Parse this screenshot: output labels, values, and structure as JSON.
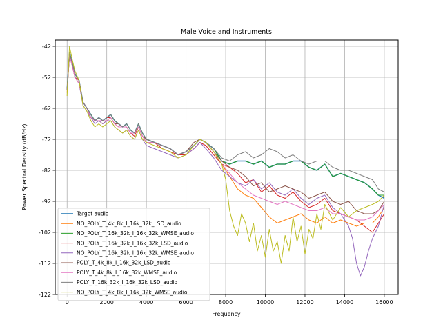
{
  "chart_data": {
    "type": "line",
    "title": "Male Voice and Instruments",
    "xlabel": "Frequency",
    "ylabel": "Power Spectral Density (dB/Hz)",
    "xlim": [
      -600,
      16700
    ],
    "ylim": [
      -122,
      -40
    ],
    "xticks": [
      0,
      2000,
      4000,
      6000,
      8000,
      10000,
      12000,
      14000,
      16000
    ],
    "yticks": [
      -42,
      -52,
      -62,
      -72,
      -82,
      -92,
      -102,
      -112,
      -122
    ],
    "grid": true,
    "legend_position": "lower-left",
    "series": [
      {
        "name": "Target audio",
        "color": "#1f77b4",
        "x": [
          0,
          120,
          250,
          400,
          600,
          800,
          1000,
          1200,
          1400,
          1600,
          1800,
          2000,
          2200,
          2400,
          2600,
          2800,
          3000,
          3200,
          3400,
          3600,
          3800,
          4000,
          4400,
          4800,
          5200,
          5600,
          6000,
          6400,
          6700,
          7000,
          7400,
          7800,
          8200,
          8600,
          9000,
          9400,
          9800,
          10200,
          10600,
          11000,
          11400,
          11800,
          12200,
          12600,
          13000,
          13400,
          13800,
          14200,
          14600,
          15000,
          15400,
          15700,
          16000
        ],
        "y": [
          -56,
          -44,
          -47,
          -51,
          -53,
          -60,
          -62,
          -64,
          -66,
          -65,
          -66,
          -65,
          -64,
          -66,
          -67,
          -68,
          -67,
          -69,
          -70,
          -67,
          -70,
          -72,
          -73,
          -74,
          -75,
          -77,
          -76,
          -74,
          -72,
          -73,
          -75,
          -79,
          -80,
          -79,
          -79,
          -80,
          -79,
          -81,
          -80,
          -80,
          -79,
          -79,
          -81,
          -82,
          -80,
          -84,
          -83,
          -84,
          -85,
          -86,
          -88,
          -90,
          -91
        ]
      },
      {
        "name": "NO_POLY_T_4k_8k_I_16k_32k_LSD_audio",
        "color": "#ff7f0e",
        "x": [
          0,
          120,
          250,
          400,
          600,
          800,
          1000,
          1200,
          1400,
          1600,
          1800,
          2000,
          2200,
          2400,
          2600,
          2800,
          3000,
          3200,
          3400,
          3600,
          3800,
          4000,
          4400,
          4800,
          5200,
          5600,
          6000,
          6400,
          6700,
          7000,
          7400,
          7800,
          8200,
          8600,
          9000,
          9400,
          9800,
          10200,
          10600,
          11000,
          11400,
          11800,
          12200,
          12600,
          13000,
          13400,
          13800,
          14200,
          14600,
          15000,
          15400,
          15700,
          16000
        ],
        "y": [
          -57,
          -45,
          -48,
          -52,
          -54,
          -60,
          -62,
          -65,
          -66,
          -66,
          -67,
          -66,
          -65,
          -67,
          -68,
          -68,
          -68,
          -70,
          -70,
          -68,
          -71,
          -72,
          -73,
          -74,
          -75,
          -77,
          -76,
          -74,
          -72,
          -73,
          -76,
          -80,
          -84,
          -88,
          -90,
          -91,
          -94,
          -97,
          -99,
          -98,
          -97,
          -96,
          -98,
          -99,
          -97,
          -99,
          -98,
          -99,
          -100,
          -99,
          -99,
          -97,
          -94
        ]
      },
      {
        "name": "NO_POLY_T_16k_32k_I_16k_32k_WMSE_audio",
        "color": "#2ca02c",
        "x": [
          0,
          120,
          250,
          400,
          600,
          800,
          1000,
          1200,
          1400,
          1600,
          1800,
          2000,
          2200,
          2400,
          2600,
          2800,
          3000,
          3200,
          3400,
          3600,
          3800,
          4000,
          4400,
          4800,
          5200,
          5600,
          6000,
          6400,
          6700,
          7000,
          7400,
          7800,
          8200,
          8600,
          9000,
          9400,
          9800,
          10200,
          10600,
          11000,
          11400,
          11800,
          12200,
          12600,
          13000,
          13400,
          13800,
          14200,
          14600,
          15000,
          15400,
          15700,
          16000
        ],
        "y": [
          -56,
          -44,
          -47,
          -51,
          -53,
          -60,
          -62,
          -64,
          -66,
          -65,
          -66,
          -65,
          -64,
          -66,
          -67,
          -68,
          -67,
          -69,
          -70,
          -67,
          -70,
          -72,
          -73,
          -74,
          -75,
          -77,
          -76,
          -74,
          -72,
          -73,
          -75,
          -79,
          -80,
          -79,
          -79,
          -80,
          -79,
          -81,
          -80,
          -80,
          -79,
          -79,
          -81,
          -82,
          -80,
          -84,
          -83,
          -84,
          -85,
          -86,
          -88,
          -90,
          -90
        ]
      },
      {
        "name": "NO_POLY_T_16k_32k_I_16k_32k_LSD_audio",
        "color": "#d62728",
        "x": [
          0,
          120,
          250,
          400,
          600,
          800,
          1000,
          1200,
          1400,
          1600,
          1800,
          2000,
          2200,
          2400,
          2600,
          2800,
          3000,
          3200,
          3400,
          3600,
          3800,
          4000,
          4400,
          4800,
          5200,
          5600,
          6000,
          6400,
          6700,
          7000,
          7400,
          7800,
          8200,
          8600,
          9000,
          9400,
          9800,
          10200,
          10600,
          11000,
          11400,
          11800,
          12200,
          12600,
          13000,
          13400,
          13800,
          14200,
          14600,
          15000,
          15400,
          15700,
          16000
        ],
        "y": [
          -56,
          -45,
          -48,
          -52,
          -53,
          -60,
          -62,
          -65,
          -66,
          -66,
          -66,
          -65,
          -65,
          -67,
          -67,
          -68,
          -68,
          -70,
          -71,
          -68,
          -71,
          -73,
          -73,
          -75,
          -76,
          -77,
          -77,
          -75,
          -73,
          -74,
          -77,
          -80,
          -81,
          -83,
          -86,
          -85,
          -89,
          -87,
          -90,
          -91,
          -89,
          -92,
          -94,
          -93,
          -91,
          -95,
          -96,
          -97,
          -98,
          -100,
          -102,
          -99,
          -96
        ]
      },
      {
        "name": "NO_POLY_T_16k_32k_I_16k_32k_WMSE_audio",
        "color": "#9467bd",
        "x": [
          0,
          120,
          250,
          400,
          600,
          800,
          1000,
          1200,
          1400,
          1600,
          1800,
          2000,
          2200,
          2400,
          2600,
          2800,
          3000,
          3200,
          3400,
          3600,
          3800,
          4000,
          4400,
          4800,
          5200,
          5600,
          6000,
          6400,
          6700,
          7000,
          7400,
          7800,
          8200,
          8600,
          9000,
          9400,
          9800,
          10200,
          10600,
          11000,
          11400,
          11800,
          12200,
          12600,
          13000,
          13400,
          13800,
          14200,
          14400,
          14600,
          14800,
          15000,
          15200,
          15400,
          15700,
          16000
        ],
        "y": [
          -56,
          -45,
          -48,
          -52,
          -54,
          -61,
          -63,
          -65,
          -67,
          -66,
          -67,
          -66,
          -66,
          -68,
          -69,
          -70,
          -69,
          -71,
          -72,
          -69,
          -72,
          -74,
          -75,
          -76,
          -77,
          -78,
          -77,
          -75,
          -73,
          -75,
          -78,
          -82,
          -84,
          -86,
          -87,
          -85,
          -88,
          -86,
          -89,
          -90,
          -88,
          -91,
          -93,
          -91,
          -90,
          -94,
          -96,
          -100,
          -104,
          -112,
          -116,
          -113,
          -108,
          -104,
          -100,
          -93
        ]
      },
      {
        "name": "POLY_T_4k_8k_I_16k_32k_LSD_audio",
        "color": "#8c564b",
        "x": [
          0,
          120,
          250,
          400,
          600,
          800,
          1000,
          1200,
          1400,
          1600,
          1800,
          2000,
          2200,
          2400,
          2600,
          2800,
          3000,
          3200,
          3400,
          3600,
          3800,
          4000,
          4400,
          4800,
          5200,
          5600,
          6000,
          6400,
          6700,
          7000,
          7400,
          7800,
          8200,
          8600,
          9000,
          9400,
          9800,
          10200,
          10600,
          11000,
          11400,
          11800,
          12200,
          12600,
          13000,
          13400,
          13800,
          14200,
          14600,
          15000,
          15400,
          15700,
          16000
        ],
        "y": [
          -56,
          -45,
          -48,
          -52,
          -54,
          -60,
          -62,
          -65,
          -66,
          -65,
          -66,
          -66,
          -65,
          -67,
          -67,
          -68,
          -68,
          -70,
          -70,
          -68,
          -71,
          -72,
          -73,
          -74,
          -75,
          -77,
          -76,
          -73,
          -72,
          -73,
          -76,
          -79,
          -81,
          -82,
          -84,
          -87,
          -86,
          -89,
          -88,
          -87,
          -88,
          -89,
          -91,
          -90,
          -89,
          -92,
          -93,
          -92,
          -95,
          -96,
          -96,
          -95,
          -92
        ]
      },
      {
        "name": "POLY_T_4k_8k_I_16k_32k_WMSE_audio",
        "color": "#e377c2",
        "x": [
          0,
          120,
          250,
          400,
          600,
          800,
          1000,
          1200,
          1400,
          1600,
          1800,
          2000,
          2200,
          2400,
          2600,
          2800,
          3000,
          3200,
          3400,
          3600,
          3800,
          4000,
          4400,
          4800,
          5200,
          5600,
          6000,
          6400,
          6700,
          7000,
          7400,
          7800,
          8200,
          8600,
          9000,
          9400,
          9800,
          10200,
          10600,
          11000,
          11400,
          11800,
          12200,
          12600,
          13000,
          13400,
          13800,
          14200,
          14600,
          15000,
          15400,
          15700,
          16000
        ],
        "y": [
          -56,
          -45,
          -48,
          -52,
          -54,
          -60,
          -62,
          -65,
          -66,
          -66,
          -66,
          -66,
          -65,
          -67,
          -68,
          -68,
          -68,
          -70,
          -70,
          -68,
          -71,
          -73,
          -73,
          -74,
          -75,
          -77,
          -76,
          -74,
          -72,
          -73,
          -76,
          -80,
          -83,
          -86,
          -88,
          -90,
          -91,
          -92,
          -93,
          -92,
          -93,
          -94,
          -95,
          -95,
          -94,
          -96,
          -96,
          -97,
          -98,
          -98,
          -97,
          -95,
          -93
        ]
      },
      {
        "name": "POLY_T_16k_32k_I_16k_32k_LSD_audio",
        "color": "#7f7f7f",
        "x": [
          0,
          120,
          250,
          400,
          600,
          800,
          1000,
          1200,
          1400,
          1600,
          1800,
          2000,
          2200,
          2400,
          2600,
          2800,
          3000,
          3200,
          3400,
          3600,
          3800,
          4000,
          4400,
          4800,
          5200,
          5600,
          6000,
          6400,
          6700,
          7000,
          7400,
          7800,
          8200,
          8600,
          9000,
          9400,
          9800,
          10200,
          10600,
          11000,
          11400,
          11800,
          12200,
          12600,
          13000,
          13400,
          13800,
          14200,
          14600,
          15000,
          15400,
          15700,
          16000
        ],
        "y": [
          -56,
          -44,
          -47,
          -51,
          -53,
          -60,
          -62,
          -64,
          -66,
          -65,
          -66,
          -65,
          -64,
          -66,
          -67,
          -68,
          -67,
          -69,
          -70,
          -67,
          -70,
          -72,
          -73,
          -74,
          -75,
          -77,
          -76,
          -74,
          -72,
          -73,
          -75,
          -78,
          -79,
          -77,
          -76,
          -78,
          -77,
          -75,
          -76,
          -78,
          -77,
          -79,
          -80,
          -79,
          -79,
          -81,
          -82,
          -82,
          -83,
          -84,
          -85,
          -88,
          -89
        ]
      },
      {
        "name": "NO_POLY_T_4k_8k_I_16k_32k_WMSE_audio",
        "color": "#bcbd22",
        "x": [
          0,
          120,
          250,
          400,
          600,
          800,
          1000,
          1200,
          1400,
          1600,
          1800,
          2000,
          2200,
          2400,
          2600,
          2800,
          3000,
          3200,
          3400,
          3600,
          3800,
          4000,
          4400,
          4800,
          5200,
          5600,
          6000,
          6400,
          6700,
          7000,
          7400,
          7800,
          8000,
          8200,
          8400,
          8600,
          8800,
          9000,
          9200,
          9400,
          9600,
          9800,
          10000,
          10200,
          10400,
          10600,
          10800,
          11000,
          11200,
          11400,
          11600,
          11800,
          12000,
          12200,
          12400,
          12600,
          12800,
          13000,
          13400,
          13800,
          14200,
          14600,
          15000,
          15400,
          15700,
          16000
        ],
        "y": [
          -58,
          -42,
          -46,
          -50,
          -53,
          -61,
          -63,
          -66,
          -68,
          -67,
          -68,
          -67,
          -66,
          -68,
          -69,
          -70,
          -69,
          -71,
          -72,
          -69,
          -72,
          -73,
          -74,
          -75,
          -76,
          -78,
          -77,
          -74,
          -72,
          -73,
          -76,
          -80,
          -85,
          -95,
          -100,
          -103,
          -96,
          -99,
          -105,
          -99,
          -108,
          -103,
          -110,
          -101,
          -108,
          -105,
          -112,
          -103,
          -108,
          -97,
          -105,
          -100,
          -109,
          -101,
          -104,
          -96,
          -101,
          -93,
          -98,
          -94,
          -97,
          -95,
          -94,
          -93,
          -92,
          -90
        ]
      }
    ]
  }
}
